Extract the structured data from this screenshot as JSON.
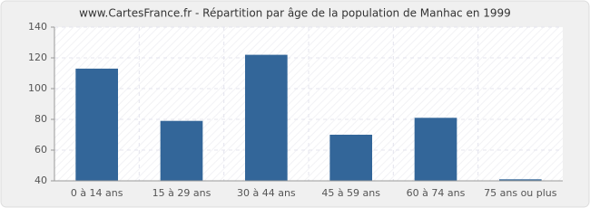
{
  "chart_data": {
    "type": "bar",
    "title": "www.CartesFrance.fr - Répartition par âge de la population de Manhac en 1999",
    "categories": [
      "0 à 14 ans",
      "15 à 29 ans",
      "30 à 44 ans",
      "45 à 59 ans",
      "60 à 74 ans",
      "75 ans ou plus"
    ],
    "values": [
      113,
      79,
      122,
      70,
      81,
      41
    ],
    "color": "#336699",
    "ylim": [
      40,
      140
    ],
    "yticks": [
      40,
      60,
      80,
      100,
      120,
      140
    ],
    "grid": true
  }
}
